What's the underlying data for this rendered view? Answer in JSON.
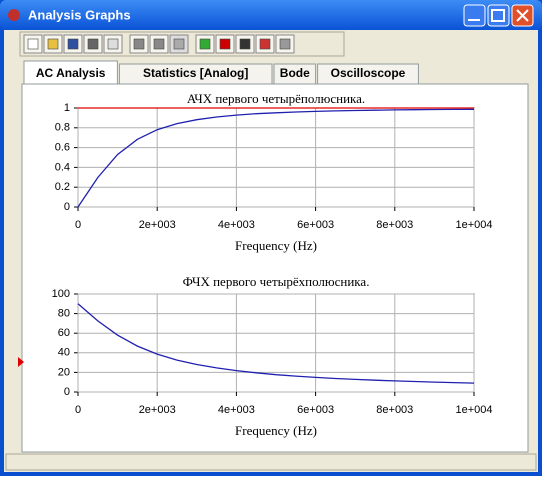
{
  "window": {
    "title": "Analysis Graphs"
  },
  "tabs": [
    "AC Analysis",
    "Statistics [Analog]",
    "Bode",
    "Oscilloscope"
  ],
  "chart_data": [
    {
      "type": "line",
      "title": "АЧХ первого четырёполюсника.",
      "x_label": "Frequency (Hz)",
      "x": [
        0,
        500,
        1000,
        1500,
        2000,
        2500,
        3000,
        3500,
        4000,
        4500,
        5000,
        5500,
        6000,
        6500,
        7000,
        7500,
        8000,
        8500,
        9000,
        9500,
        10000
      ],
      "series": [
        {
          "color": "#2020b0",
          "values": [
            0,
            0.298,
            0.53,
            0.684,
            0.781,
            0.842,
            0.882,
            0.909,
            0.928,
            0.942,
            0.952,
            0.96,
            0.966,
            0.971,
            0.975,
            0.978,
            0.981,
            0.983,
            0.985,
            0.986,
            0.987
          ]
        },
        {
          "color": "#e00000",
          "values": [
            1,
            1,
            1,
            1,
            1,
            1,
            1,
            1,
            1,
            1,
            1,
            1,
            1,
            1,
            1,
            1,
            1,
            1,
            1,
            1,
            1
          ]
        }
      ],
      "xlim": [
        0,
        10000
      ],
      "xticks": [
        0,
        {
          "value": 2000,
          "label": "2e+003"
        },
        {
          "value": 4000,
          "label": "4e+003"
        },
        {
          "value": 6000,
          "label": "6e+003"
        },
        {
          "value": 8000,
          "label": "8e+003"
        },
        {
          "value": 10000,
          "label": "1e+004"
        }
      ],
      "ylim": [
        0,
        1
      ],
      "yticks": [
        0,
        0.2,
        0.4,
        0.6,
        0.8,
        1
      ],
      "grid": true
    },
    {
      "type": "line",
      "title": "ФЧХ первого четырёхполюсника.",
      "x_label": "Frequency (Hz)",
      "x": [
        0,
        500,
        1000,
        1500,
        2000,
        2500,
        3000,
        3500,
        4000,
        4500,
        5000,
        5500,
        6000,
        6500,
        7000,
        7500,
        8000,
        8500,
        9000,
        9500,
        10000
      ],
      "series": [
        {
          "color": "#2020b0",
          "values": [
            90,
            72.6,
            58.0,
            46.8,
            38.7,
            32.6,
            28.1,
            24.6,
            21.8,
            19.6,
            17.7,
            16.2,
            14.9,
            13.8,
            12.9,
            12.0,
            11.3,
            10.7,
            10.1,
            9.6,
            9.1
          ]
        }
      ],
      "xlim": [
        0,
        10000
      ],
      "xticks": [
        0,
        {
          "value": 2000,
          "label": "2e+003"
        },
        {
          "value": 4000,
          "label": "4e+003"
        },
        {
          "value": 6000,
          "label": "6e+003"
        },
        {
          "value": 8000,
          "label": "8e+003"
        },
        {
          "value": 10000,
          "label": "1e+004"
        }
      ],
      "ylim": [
        0,
        100
      ],
      "yticks": [
        0,
        20,
        40,
        60,
        80,
        100
      ],
      "grid": true
    }
  ]
}
